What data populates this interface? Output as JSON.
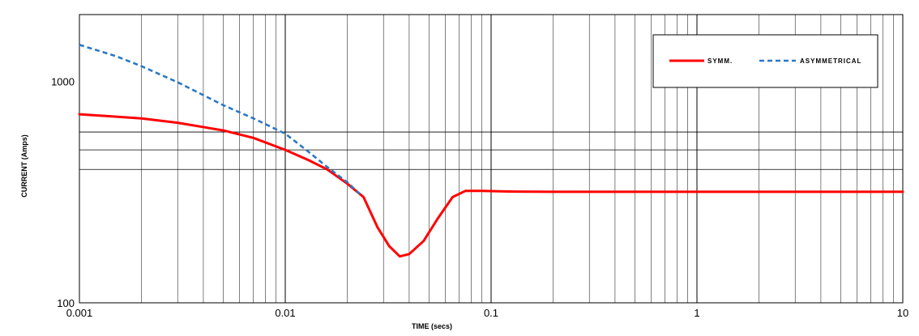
{
  "chart_data": {
    "type": "line",
    "xlabel": "TIME (secs)",
    "ylabel": "CURRENT (Amps)",
    "x_scale": "log",
    "y_scale": "log",
    "xlim": [
      0.001,
      10
    ],
    "ylim": [
      100,
      2000
    ],
    "x_ticks": [
      "0.001",
      "0.01",
      "0.1",
      "1",
      "10"
    ],
    "y_ticks": [
      "100",
      "1000"
    ],
    "grid": true,
    "legend_position": "top-right",
    "reference_lines_y": [
      400,
      490,
      590
    ],
    "series": [
      {
        "name": "SYMM.",
        "color": "#ff0000",
        "style": "solid",
        "points": [
          [
            0.001,
            710
          ],
          [
            0.002,
            680
          ],
          [
            0.003,
            650
          ],
          [
            0.005,
            600
          ],
          [
            0.007,
            555
          ],
          [
            0.01,
            490
          ],
          [
            0.013,
            440
          ],
          [
            0.016,
            400
          ],
          [
            0.02,
            345
          ],
          [
            0.024,
            300
          ],
          [
            0.028,
            220
          ],
          [
            0.032,
            180
          ],
          [
            0.036,
            162
          ],
          [
            0.04,
            166
          ],
          [
            0.047,
            190
          ],
          [
            0.055,
            240
          ],
          [
            0.065,
            300
          ],
          [
            0.075,
            320
          ],
          [
            0.09,
            320
          ],
          [
            0.12,
            318
          ],
          [
            0.2,
            317
          ],
          [
            1,
            317
          ],
          [
            10,
            317
          ]
        ]
      },
      {
        "name": "ASYMMETRICAL",
        "color": "#2b78c5",
        "style": "dashed",
        "points": [
          [
            0.001,
            1460
          ],
          [
            0.0015,
            1300
          ],
          [
            0.002,
            1170
          ],
          [
            0.003,
            990
          ],
          [
            0.005,
            780
          ],
          [
            0.007,
            680
          ],
          [
            0.01,
            580
          ],
          [
            0.013,
            480
          ],
          [
            0.016,
            410
          ],
          [
            0.02,
            350
          ],
          [
            0.023,
            310
          ]
        ]
      }
    ]
  }
}
